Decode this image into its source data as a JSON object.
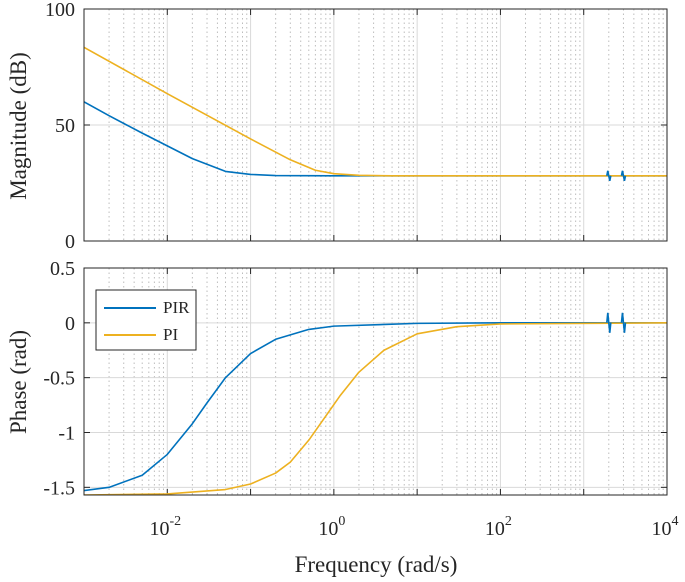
{
  "chart_data": [
    {
      "type": "line",
      "panel": "magnitude",
      "title": "",
      "xlabel": "",
      "ylabel": "Magnitude (dB)",
      "xscale": "log",
      "xlim": [
        0.001,
        10000
      ],
      "ylim": [
        0,
        100
      ],
      "yticks": [
        {
          "value": 0,
          "label": "0"
        },
        {
          "value": 50,
          "label": "50"
        },
        {
          "value": 100,
          "label": "100"
        }
      ],
      "grid": true,
      "series": [
        {
          "name": "PIR",
          "color": "#0072BD",
          "points": [
            [
              0.001,
              60
            ],
            [
              0.002,
              54
            ],
            [
              0.005,
              46.5
            ],
            [
              0.01,
              41
            ],
            [
              0.02,
              35.5
            ],
            [
              0.05,
              30
            ],
            [
              0.1,
              28.7
            ],
            [
              0.2,
              28.2
            ],
            [
              1,
              28.1
            ],
            [
              100,
              28.1
            ],
            [
              1800,
              28.1
            ],
            [
              2000,
              28.1
            ],
            [
              3000,
              28.1
            ],
            [
              10000,
              28.1
            ]
          ]
        },
        {
          "name": "PI",
          "color": "#EDB120",
          "points": [
            [
              0.001,
              83.5
            ],
            [
              0.01,
              63.5
            ],
            [
              0.1,
              44
            ],
            [
              0.3,
              35
            ],
            [
              0.6,
              30.5
            ],
            [
              1,
              29
            ],
            [
              2,
              28.3
            ],
            [
              5,
              28.1
            ],
            [
              100,
              28.1
            ],
            [
              10000,
              28.1
            ]
          ]
        }
      ],
      "resonance_markers": [
        2000,
        3000
      ]
    },
    {
      "type": "line",
      "panel": "phase",
      "title": "",
      "xlabel": "Frequency (rad/s)",
      "ylabel": "Phase (rad)",
      "xscale": "log",
      "xlim": [
        0.001,
        10000
      ],
      "ylim": [
        -1.57,
        0.5
      ],
      "xticks": [
        {
          "value": 0.01,
          "base": "10",
          "exp": "-2"
        },
        {
          "value": 1,
          "base": "10",
          "exp": "0"
        },
        {
          "value": 100,
          "base": "10",
          "exp": "2"
        },
        {
          "value": 10000,
          "base": "10",
          "exp": "4"
        }
      ],
      "yticks": [
        {
          "value": 0.5,
          "label": "0.5"
        },
        {
          "value": 0,
          "label": "0"
        },
        {
          "value": -0.5,
          "label": "-0.5"
        },
        {
          "value": -1,
          "label": "-1"
        },
        {
          "value": -1.5,
          "label": "-1.5"
        }
      ],
      "grid": true,
      "legend": {
        "placement": "top-left",
        "entries": [
          "PIR",
          "PI"
        ]
      },
      "series": [
        {
          "name": "PIR",
          "color": "#0072BD",
          "points": [
            [
              0.001,
              -1.53
            ],
            [
              0.002,
              -1.5
            ],
            [
              0.005,
              -1.39
            ],
            [
              0.01,
              -1.2
            ],
            [
              0.02,
              -0.92
            ],
            [
              0.03,
              -0.73
            ],
            [
              0.05,
              -0.5
            ],
            [
              0.1,
              -0.28
            ],
            [
              0.2,
              -0.15
            ],
            [
              0.5,
              -0.06
            ],
            [
              1,
              -0.03
            ],
            [
              10,
              -0.005
            ],
            [
              100,
              0
            ],
            [
              1800,
              0
            ],
            [
              10000,
              0
            ]
          ]
        },
        {
          "name": "PI",
          "color": "#EDB120",
          "points": [
            [
              0.001,
              -1.57
            ],
            [
              0.01,
              -1.56
            ],
            [
              0.05,
              -1.52
            ],
            [
              0.1,
              -1.47
            ],
            [
              0.2,
              -1.37
            ],
            [
              0.3,
              -1.27
            ],
            [
              0.5,
              -1.07
            ],
            [
              0.8,
              -0.85
            ],
            [
              1.2,
              -0.66
            ],
            [
              2,
              -0.45
            ],
            [
              4,
              -0.25
            ],
            [
              10,
              -0.1
            ],
            [
              30,
              -0.035
            ],
            [
              100,
              -0.01
            ],
            [
              10000,
              0
            ]
          ]
        }
      ],
      "resonance_markers": [
        2000,
        3000
      ]
    }
  ]
}
